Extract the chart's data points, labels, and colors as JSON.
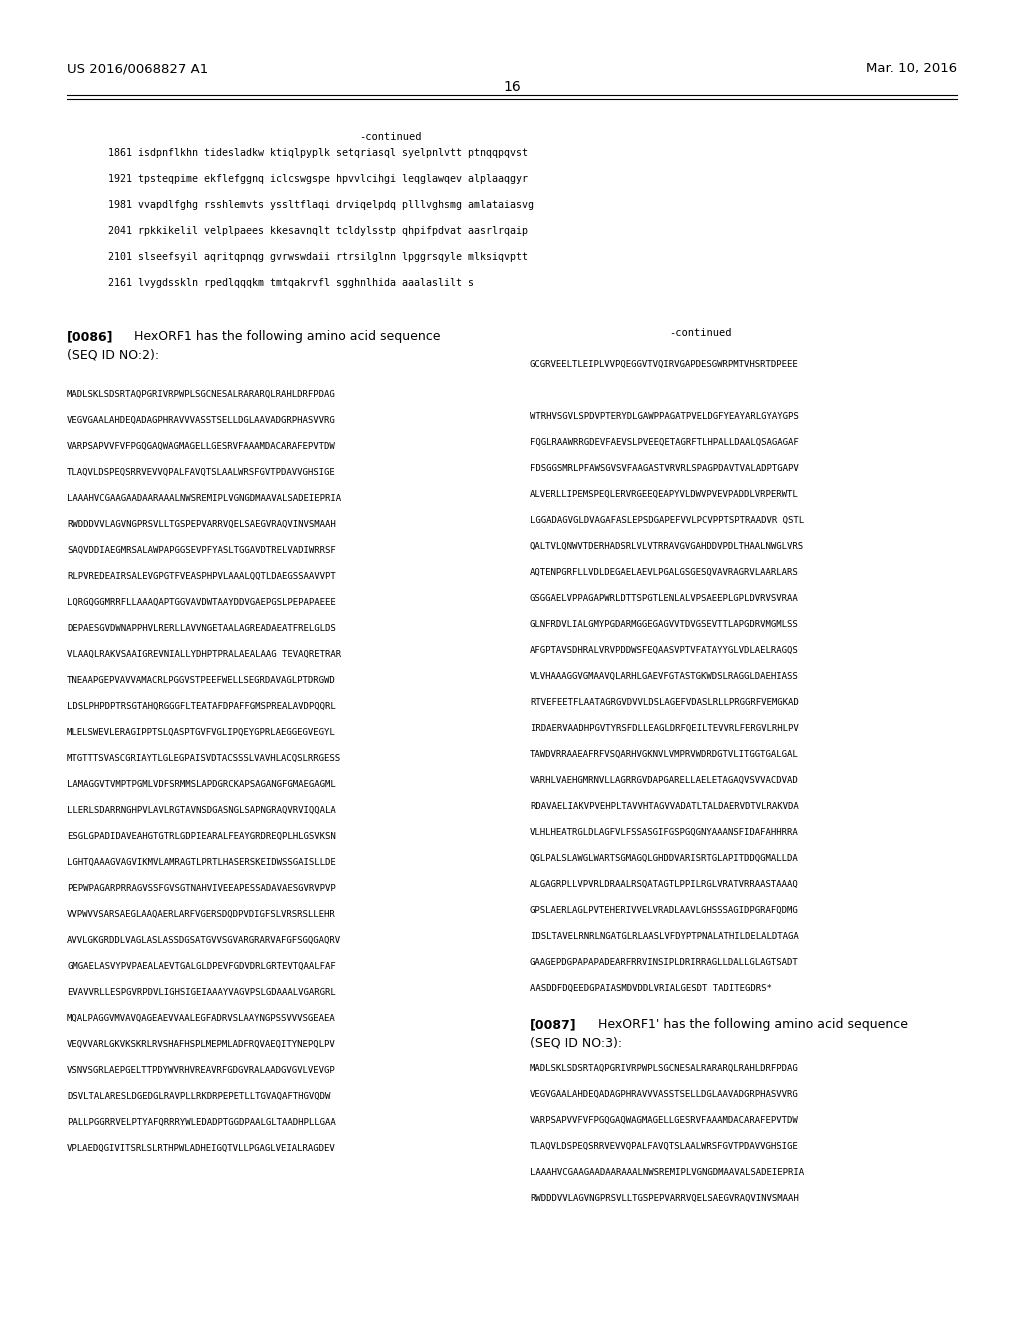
{
  "page_width": 10.24,
  "page_height": 13.2,
  "dpi": 100,
  "bg_color": "#ffffff",
  "header_left": "US 2016/0068827 A1",
  "header_right": "Mar. 10, 2016",
  "page_number": "16",
  "continued_label": "-continued",
  "seq_lines": [
    "1861 isdpnflkhn tidesladkw ktiqlpyplk setqriasql syelpnlvtt ptnqqpqvst",
    "1921 tpsteqpime ekflefggnq iclcswgspe hpvvlcihgi leqglawqev alplaaqgyr",
    "1981 vvapdlfghg rsshlemvts yssltflaqi drviqelpdq plllvghsmg amlataiasvg",
    "2041 rpkkikelil velplpaees kkesavnqlt tcldylsstp qhpifpdvat aasrlrqaip",
    "2101 slseefsyil aqritqpnqg gvrwswdaii rtrsilglnn lpggrsqyle mlksiqvptt",
    "2161 lvygdsskln rpedlqqqkm tmtqakrvfl sgghnlhida aaalaslilt s"
  ],
  "left_col_lines": [
    "MADLSKLSDSRTAQPGRIVRPWPLSGCNESALRARARQLRAHLDRFPDAG",
    "VEGVGAALAHDEQADAGPHRAVVVASSTSELLDGLAAVADGRPHASVVRG",
    "VARPSAPVVFVFPGQGAQWAGMAGELLGESRVFAAAMDACARAFEPVTDW",
    "TLAQVLDSPEQSRRVEVVQPALFAVQTSLAALWRSFGVTPDAVVGHSIGE",
    "LAAAHVCGAAGAADAARAAALNWSREMIPLVGNGDMAAVALSADEIEPRIA",
    "RWDDDVVLAGVNGPRSVLLTGSPEPVARRVQELSAEGVRAQVINVSMAAH",
    "SAQVDDIAEGMRSALAWPAPGGSEVPFYASLTGGAVDTRELVADIWRRSF",
    "RLPVREDEAIRSALEVGPGTFVEASPHPVLAAALQQTLDAEGSSAAVVPT",
    "LQRGQGGMRRFLLAAAQAPTGGVAVDWTAAYDDVGAEPGSLPEPAPAEEE",
    "DEPAESGVDWNAPPHVLRERLLAVVNGETAALAGREADAEATFRELGLDS",
    "VLAAQLRAKVSAAIGREVNIALLYDHPTPRALAEALAAG TEVAQRETRAR",
    "TNEAAPGEPVAVVAMACRLPGGVSTPEEFWELLSEGRDAVAGLPTDRGWD",
    "LDSLPHPDPTRSGTAHQRGGGFLTEATAFDPAFFGMSPREALAVDPQQRL",
    "MLELSWEVLERAGIPPTSLQASPTGVFVGLIPQEYGPRLAEGGEGVEGYL",
    "MTGTTTSVASCGRIAYTLGLEGPAISVDTACSSSLVAVHLACQSLRRGESS",
    "LAMAGGVTVMPTPGMLVDFSRMMSLAPDGRCKAPSAGANGFGMAEGAGML",
    "LLERLSDARRNGHPVLAVLRGTAVNSDGASNGLSAPNGRAQVRVIQQALA",
    "ESGLGPADIDAVEAHGTGTRLGDPIEARALFEAYGRDREQPLHLGSVKSN",
    "LGHTQAAAGVAGVIKMVLAMRAGTLPRTLHASERSKEIDWSSGAISLLDE",
    "PEPWPAGARPRRAGVSSFGVSGTNAHVIVEEAPESSADAVAESGVRVPVP",
    "VVPWVVSARSAEGLAAQAERLARFVGERSDQDPVDIGFSLVRSRSLLEHR",
    "AVVLGKGRDDLVAGLASLASSDGSATGVVSGVARGRARVAFGFSGQGAQRV",
    "GMGAELASVYPVPAEALAEVTGALGLDPEVFGDVDRLGRTEVTQAALFAF",
    "EVAVVRLLESPGVRPDVLIGHSIGEIAAAYVAGVPSLGDAAALVGARGRL",
    "MQALPAGGVMVAVQAGEAEVVAALEGFADRVSLAAYNGPSSVVVSGEAEA",
    "VEQVVARLGKVKSKRLRVSHAFHSPLMEPMLADFRQVAEQITYNEPQLPV",
    "VSNVSGRLAEPGELTTPDYWVRHVREAVRFGDGVRALAADGVGVLVEVGP",
    "DSVLTALARESLDGEDGLRAVPLLRKDRPEPETLLTGVAQAFTHGVQDW",
    "PALLPGGRRVELPTYAFQRRRYWLEDADPTGGDPAALGLTAADHPLLGAA",
    "VPLAEDQGIVITSRLSLRTHPWLADHEIGQTVLLPGAGLVEIALRAGDEV"
  ],
  "right_col_lines": [
    "GCGRVEELTLEIPLVVPQEGGVTVQIRVGAPDESGWRPMTVHSRTDPEEE",
    "",
    "WTRHVSGVLSPDVPTERYDLGAWPPAGATPVELDGFYEAYARLGYAYGPS",
    "FQGLRAAWRRGDEVFAEVSLPVEEQETAGRFTLHPALLDAALQSAGAGAF",
    "FDSGGSMRLPFAWSGVSVFAAGASTVRVRLSPAGPDAVTVALADPTGAPV",
    "ALVERLLIPEMSPEQLERVRGEEQEAPYVLDWVPVEVPADDLVRPERWTL",
    "LGGADAGVGLDVAGAFASLEPSDGAPEFVVLPCVPPTSPTRAADVR QSTL",
    "QALTVLQNWVTDERHADSRLVLVTRRAVGVGAHDDVPDLTHAALNWGLVRS",
    "AQTENPGRFLLVDLDEGAELAEVLPGALGSGESQVAVRAGRVLAARLARS",
    "GSGGAELVPPAGAPWRLDTTSPGTLENLALVPSAEEPLGPLDVRVSVRAA",
    "GLNFRDVLIALGMYPGDARMGGEGAGVVTDVGSEVTTLAPGDRVMGMLSS",
    "AFGPTAVSDHRALVRVPDDWSFEQAASVPTVFATAYYGLVDLAELRAGQS",
    "VLVHAAAGGVGMAAVQLARHLGAEVFGTASTGKWDSLRAGGLDAEHIASS",
    "RTVEFEETFLAATAGRGVDVVLDSLAGEFVDASLRLLPRGGRFVEMGKAD",
    "IRDAERVAADHPGVTYRSFDLLEAGLDRFQEILTEVVRLFERGVLRHLPV",
    "TAWDVRRAAEAFRFVSQARHVGKNVLVMPRVWDRDGTVLITGGTGALGAL",
    "VARHLVAEHGMRNVLLAGRRGVDAPGARELLAELETAGAQVSVVACDVAD",
    "RDAVAELIAKVPVEHPLTAVVHTAGVVADATLTALDAERVDTVLRAKVDA",
    "VLHLHEATRGLDLAGFVLFSSASGIFGSPGQGNYAAANSFIDAFAHHRRA",
    "QGLPALSLAWGLWARTSGMAGQLGHDDVARISRTGLAPITDDQGMALLDA",
    "ALGAGRPLLVPVRLDRAALRSQATAGTLPPILRGLVRATVRRAASTAAAQ",
    "GPSLAERLAGLPVTEHERIVVELVRADLAAVLGHSSSAGIDPGRAFQDMG",
    "IDSLTAVELRNRLNGATGLRLAASLVFDYPTPNALATHILDELALDTAGA",
    "GAAGEPDGPAPAPADEARFRRVINSIPLDRIRRAGLLDALLGLAGTSADT",
    "AASDDFDQEEDGPAIASMDVDDLVRIALGESDT TADITEGDRS*"
  ],
  "bottom_lines": [
    "MADLSKLSDSRTAQPGRIVRPWPLSGCNESALRARARQLRAHLDRFPDAG",
    "VEGVGAALAHDEQADAGPHRAVVVASSTSELLDGLAAVADGRPHASVVRG",
    "VARPSAPVVFVFPGQGAQWAGMAGELLGESRVFAAAMDACARAFEPVTDW",
    "TLAQVLDSPEQSRRVEVVQPALFAVQTSLAALWRSFGVTPDAVVGHSIGE",
    "LAAAHVCGAAGAADAARAAALNWSREMIPLVGNGDMAAVALSADEIEPRIA",
    "RWDDDVVLAGVNGPRSVLLTGSPEPVARRVQELSAEGVRAQVINVSMAAH"
  ]
}
